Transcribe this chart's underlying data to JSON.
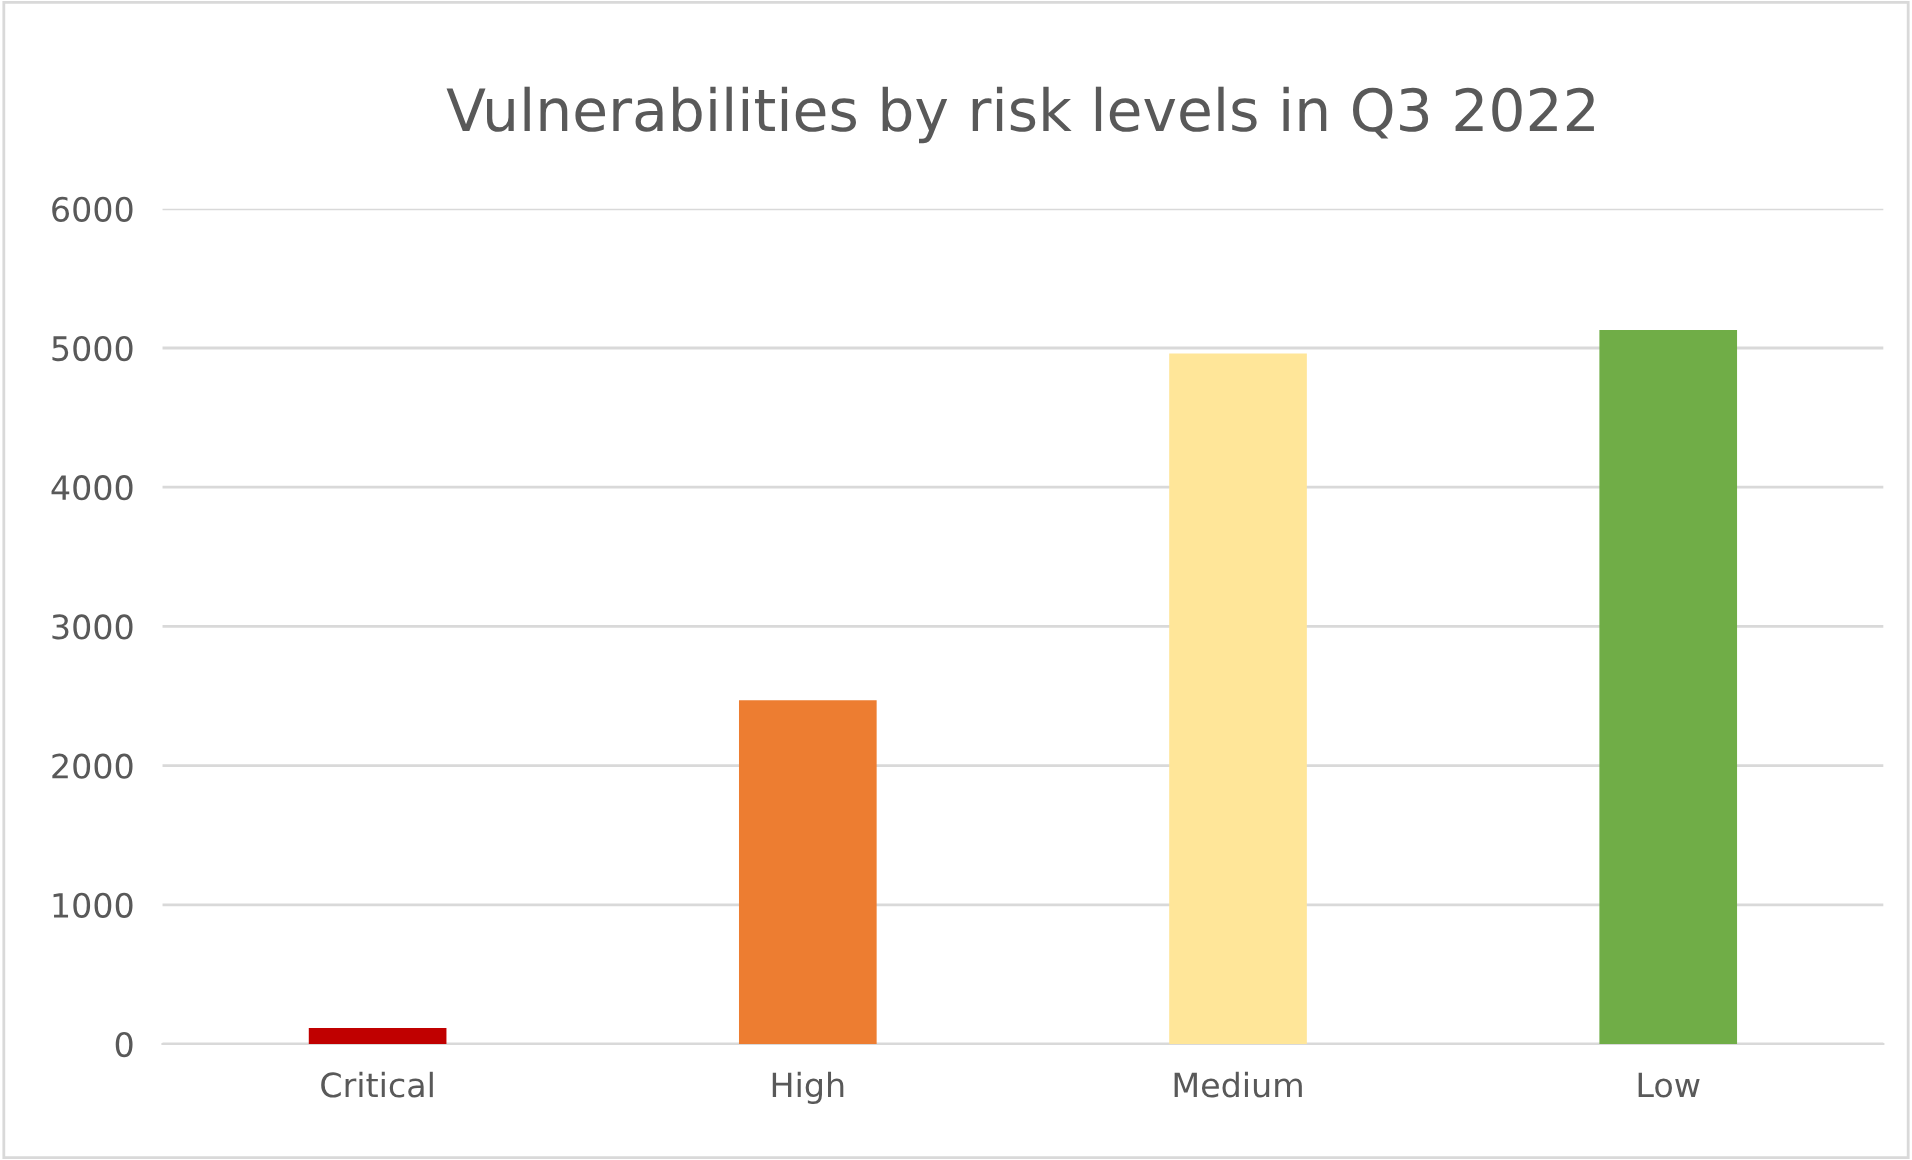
{
  "chart_data": {
    "type": "bar",
    "title": "Vulnerabilities by risk levels in Q3 2022",
    "categories": [
      "Critical",
      "High",
      "Medium",
      "Low"
    ],
    "values": [
      115,
      2470,
      4960,
      5130
    ],
    "colors": [
      "#c00000",
      "#ed7d31",
      "#ffe699",
      "#70ad47"
    ],
    "ylim": [
      0,
      6000
    ],
    "yticks": [
      0,
      1000,
      2000,
      3000,
      4000,
      5000,
      6000
    ],
    "grid": "y"
  }
}
